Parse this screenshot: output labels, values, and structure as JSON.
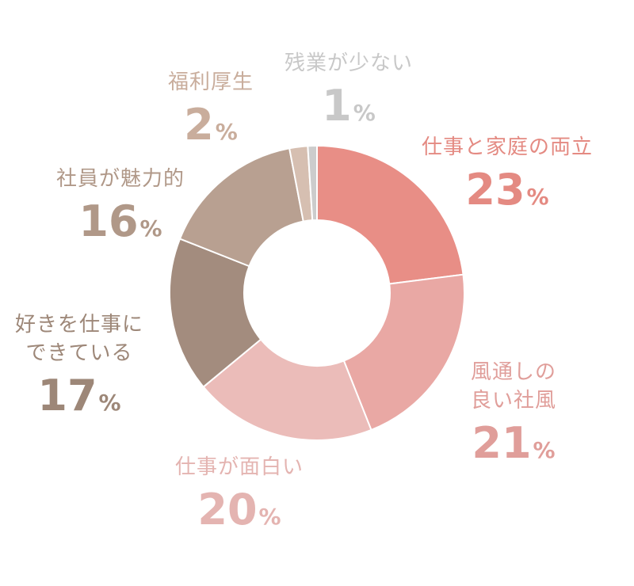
{
  "chart_data": {
    "type": "pie",
    "donut": true,
    "slices": [
      {
        "label": "仕事と家庭の両立",
        "value": 23,
        "color": "#e88e86"
      },
      {
        "label": "風通しの\n良い社風",
        "value": 21,
        "color": "#e9a8a4"
      },
      {
        "label": "仕事が面白い",
        "value": 20,
        "color": "#ebbcb9"
      },
      {
        "label": "好きを仕事に\nできている",
        "value": 17,
        "color": "#a38c7e"
      },
      {
        "label": "社員が魅力的",
        "value": 16,
        "color": "#b8a091"
      },
      {
        "label": "福利厚生",
        "value": 2,
        "color": "#d6bfb1"
      },
      {
        "label": "残業が少ない",
        "value": 1,
        "color": "#cccccc"
      }
    ],
    "percent_suffix": "%"
  }
}
